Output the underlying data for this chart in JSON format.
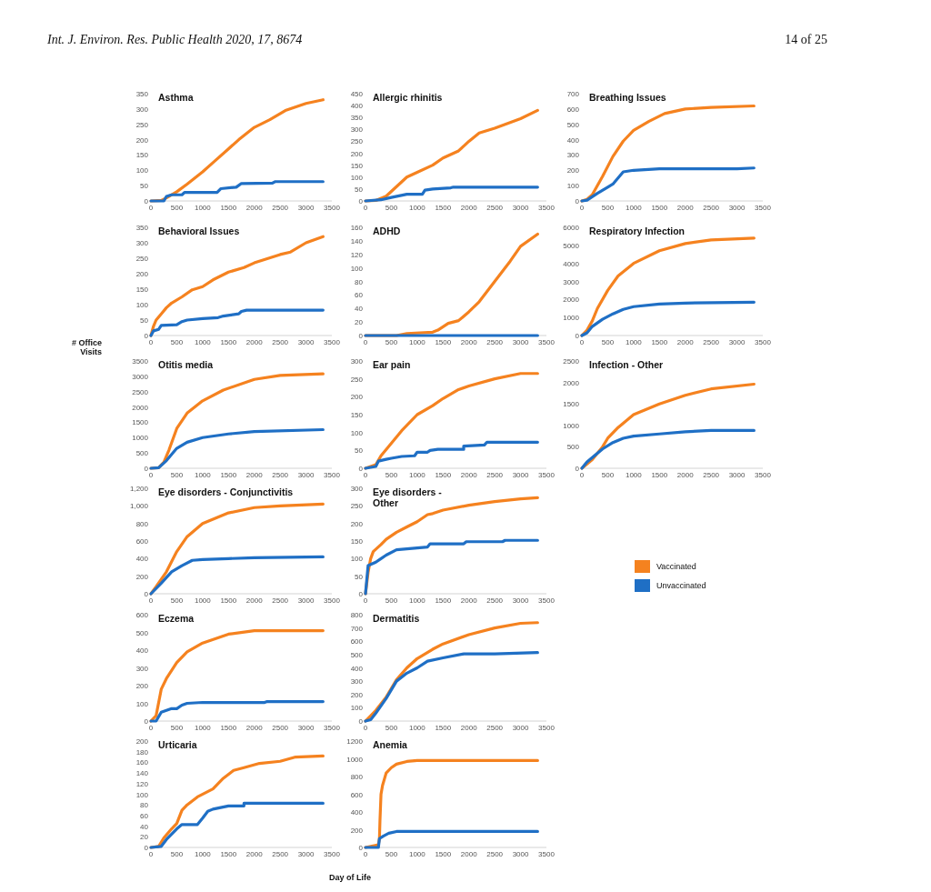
{
  "chart_data": [
    {
      "type": "line",
      "title": "Asthma",
      "annotations": [
        "Int. J. Environ. Res. Public Health 2020, 17, 8674",
        "14 of 25"
      ],
      "xlim": [
        0,
        3500
      ],
      "xticks": [
        0,
        500,
        1000,
        1500,
        2000,
        2500,
        3000,
        3500
      ],
      "ylim": [
        0,
        350
      ],
      "yticks": [
        0,
        50,
        100,
        150,
        200,
        250,
        300,
        350
      ],
      "series": [
        {
          "color": "#f5821f",
          "x": [
            0,
            200,
            300,
            500,
            700,
            1000,
            1200,
            1500,
            1700,
            2000,
            2300,
            2600,
            3000,
            3330
          ],
          "values": [
            0,
            2,
            10,
            30,
            55,
            95,
            125,
            170,
            200,
            240,
            265,
            295,
            318,
            330
          ]
        },
        {
          "color": "#1f6fc5",
          "x": [
            0,
            250,
            300,
            400,
            600,
            650,
            1280,
            1350,
            1650,
            1750,
            2350,
            2400,
            3330
          ],
          "values": [
            0,
            0,
            15,
            20,
            20,
            28,
            28,
            40,
            45,
            57,
            58,
            63,
            63
          ]
        }
      ]
    },
    {
      "type": "line",
      "title": "Allergic rhinitis",
      "xlim": [
        0,
        3500
      ],
      "xticks": [
        0,
        500,
        1000,
        1500,
        2000,
        2500,
        3000,
        3500
      ],
      "ylim": [
        0,
        450
      ],
      "yticks": [
        0,
        50,
        100,
        150,
        200,
        250,
        300,
        350,
        400,
        450
      ],
      "series": [
        {
          "color": "#f5821f",
          "x": [
            0,
            200,
            400,
            600,
            800,
            1000,
            1300,
            1500,
            1800,
            2000,
            2200,
            2500,
            3000,
            3330
          ],
          "values": [
            0,
            2,
            20,
            60,
            100,
            120,
            150,
            180,
            210,
            250,
            285,
            305,
            345,
            380
          ]
        },
        {
          "color": "#1f6fc5",
          "x": [
            0,
            300,
            500,
            800,
            1100,
            1150,
            1300,
            1650,
            1700,
            3330
          ],
          "values": [
            0,
            5,
            15,
            28,
            28,
            45,
            50,
            55,
            58,
            58
          ]
        }
      ]
    },
    {
      "type": "line",
      "title": "Breathing  Issues",
      "xlim": [
        0,
        3500
      ],
      "xticks": [
        0,
        500,
        1000,
        1500,
        2000,
        2500,
        3000,
        3500
      ],
      "ylim": [
        0,
        700
      ],
      "yticks": [
        0,
        100,
        200,
        300,
        400,
        500,
        600,
        700
      ],
      "series": [
        {
          "color": "#f5821f",
          "x": [
            0,
            100,
            200,
            400,
            600,
            800,
            1000,
            1300,
            1600,
            2000,
            2500,
            3330
          ],
          "values": [
            0,
            10,
            40,
            160,
            290,
            390,
            460,
            520,
            570,
            600,
            610,
            620
          ]
        },
        {
          "color": "#1f6fc5",
          "x": [
            0,
            100,
            300,
            500,
            600,
            700,
            800,
            1000,
            1500,
            3000,
            3330
          ],
          "values": [
            0,
            5,
            50,
            90,
            110,
            150,
            190,
            200,
            210,
            210,
            215
          ]
        }
      ]
    },
    {
      "type": "line",
      "title": "Behavioral  Issues",
      "ylabel": "# Office Visits",
      "xlim": [
        0,
        3500
      ],
      "xticks": [
        0,
        500,
        1000,
        1500,
        2000,
        2500,
        3000,
        3500
      ],
      "ylim": [
        0,
        350
      ],
      "yticks": [
        0,
        50,
        100,
        150,
        200,
        250,
        300,
        350
      ],
      "series": [
        {
          "color": "#f5821f",
          "x": [
            0,
            50,
            100,
            200,
            300,
            400,
            600,
            800,
            1000,
            1200,
            1500,
            1800,
            2000,
            2500,
            2700,
            3000,
            3330
          ],
          "values": [
            0,
            30,
            50,
            70,
            90,
            105,
            125,
            148,
            158,
            180,
            205,
            220,
            235,
            262,
            270,
            300,
            320
          ]
        },
        {
          "color": "#1f6fc5",
          "x": [
            0,
            50,
            150,
            200,
            500,
            600,
            700,
            1000,
            1300,
            1400,
            1700,
            1750,
            1850,
            3330
          ],
          "values": [
            0,
            15,
            20,
            33,
            35,
            45,
            50,
            55,
            58,
            63,
            70,
            78,
            82,
            82
          ]
        }
      ]
    },
    {
      "type": "line",
      "title": "ADHD",
      "xlim": [
        0,
        3500
      ],
      "xticks": [
        0,
        500,
        1000,
        1500,
        2000,
        2500,
        3000,
        3500
      ],
      "ylim": [
        0,
        160
      ],
      "yticks": [
        0,
        20,
        40,
        60,
        80,
        100,
        120,
        140,
        160
      ],
      "series": [
        {
          "color": "#f5821f",
          "x": [
            0,
            600,
            800,
            1300,
            1400,
            1600,
            1800,
            2000,
            2200,
            2500,
            2800,
            3000,
            3330
          ],
          "values": [
            0,
            0,
            3,
            5,
            8,
            18,
            22,
            35,
            50,
            80,
            110,
            132,
            150
          ]
        },
        {
          "color": "#1f6fc5",
          "x": [
            0,
            800,
            1400,
            3330
          ],
          "values": [
            0,
            0,
            0,
            0
          ]
        }
      ]
    },
    {
      "type": "line",
      "title": "Respiratory Infection",
      "xlim": [
        0,
        3500
      ],
      "xticks": [
        0,
        500,
        1000,
        1500,
        2000,
        2500,
        3000,
        3500
      ],
      "ylim": [
        0,
        6000
      ],
      "yticks": [
        0,
        1000,
        2000,
        3000,
        4000,
        5000,
        6000
      ],
      "series": [
        {
          "color": "#f5821f",
          "x": [
            0,
            100,
            200,
            300,
            500,
            700,
            1000,
            1500,
            2000,
            2500,
            3330
          ],
          "values": [
            0,
            300,
            800,
            1500,
            2500,
            3300,
            4000,
            4700,
            5100,
            5300,
            5400
          ]
        },
        {
          "color": "#1f6fc5",
          "x": [
            0,
            100,
            200,
            400,
            600,
            800,
            1000,
            1500,
            2000,
            3330
          ],
          "values": [
            0,
            150,
            500,
            900,
            1200,
            1450,
            1600,
            1750,
            1800,
            1850
          ]
        }
      ]
    },
    {
      "type": "line",
      "title": "Otitis media",
      "xlim": [
        0,
        3500
      ],
      "xticks": [
        0,
        500,
        1000,
        1500,
        2000,
        2500,
        3000,
        3500
      ],
      "ylim": [
        0,
        3500
      ],
      "yticks": [
        0,
        500,
        1000,
        1500,
        2000,
        2500,
        3000,
        3500
      ],
      "series": [
        {
          "color": "#f5821f",
          "x": [
            0,
            150,
            250,
            350,
            500,
            700,
            1000,
            1400,
            2000,
            2500,
            3330
          ],
          "values": [
            0,
            20,
            200,
            600,
            1300,
            1800,
            2200,
            2550,
            2900,
            3030,
            3080
          ]
        },
        {
          "color": "#1f6fc5",
          "x": [
            0,
            150,
            300,
            500,
            700,
            1000,
            1500,
            2000,
            3330
          ],
          "values": [
            0,
            20,
            250,
            650,
            850,
            1000,
            1120,
            1200,
            1260
          ]
        }
      ]
    },
    {
      "type": "line",
      "title": "Ear pain",
      "xlim": [
        0,
        3500
      ],
      "xticks": [
        0,
        500,
        1000,
        1500,
        2000,
        2500,
        3000,
        3500
      ],
      "ylim": [
        0,
        300
      ],
      "yticks": [
        0,
        50,
        100,
        150,
        200,
        250,
        300
      ],
      "series": [
        {
          "color": "#f5821f",
          "x": [
            0,
            200,
            300,
            500,
            700,
            1000,
            1300,
            1500,
            1800,
            2000,
            2500,
            3000,
            3330
          ],
          "values": [
            0,
            10,
            35,
            70,
            105,
            150,
            175,
            195,
            220,
            230,
            250,
            265,
            265
          ]
        },
        {
          "color": "#1f6fc5",
          "x": [
            0,
            200,
            250,
            400,
            500,
            700,
            950,
            1000,
            1200,
            1250,
            1400,
            1900,
            1900,
            2300,
            2350,
            3330
          ],
          "values": [
            0,
            5,
            20,
            25,
            28,
            33,
            35,
            45,
            45,
            50,
            53,
            53,
            62,
            65,
            73,
            73
          ]
        }
      ]
    },
    {
      "type": "line",
      "title": "Infection  - Other",
      "xlim": [
        0,
        3500
      ],
      "xticks": [
        0,
        500,
        1000,
        1500,
        2000,
        2500,
        3000,
        3500
      ],
      "ylim": [
        0,
        2500
      ],
      "yticks": [
        0,
        500,
        1000,
        1500,
        2000,
        2500
      ],
      "series": [
        {
          "color": "#f5821f",
          "x": [
            0,
            200,
            400,
            500,
            700,
            1000,
            1500,
            2000,
            2500,
            3330
          ],
          "values": [
            0,
            200,
            500,
            700,
            950,
            1250,
            1500,
            1700,
            1850,
            1960
          ]
        },
        {
          "color": "#1f6fc5",
          "x": [
            0,
            100,
            200,
            400,
            600,
            800,
            1000,
            1500,
            2000,
            2500,
            3330
          ],
          "values": [
            0,
            150,
            250,
            450,
            600,
            700,
            750,
            800,
            850,
            880,
            880
          ]
        }
      ]
    },
    {
      "type": "line",
      "title": "Eye disorders - Conjunctivitis",
      "xlim": [
        0,
        3500
      ],
      "xticks": [
        0,
        500,
        1000,
        1500,
        2000,
        2500,
        3000,
        3500
      ],
      "ylim": [
        0,
        1200
      ],
      "yticks": [
        0,
        200,
        400,
        600,
        800,
        {
          "value": 1000,
          "label": "1,000"
        },
        {
          "value": 1200,
          "label": "1,200"
        }
      ],
      "series": [
        {
          "color": "#f5821f",
          "x": [
            0,
            100,
            300,
            500,
            700,
            1000,
            1500,
            2000,
            2500,
            3330
          ],
          "values": [
            0,
            80,
            250,
            480,
            650,
            800,
            920,
            980,
            1000,
            1020
          ]
        },
        {
          "color": "#1f6fc5",
          "x": [
            0,
            200,
            400,
            600,
            800,
            1000,
            1500,
            2000,
            3330
          ],
          "values": [
            0,
            120,
            250,
            320,
            380,
            390,
            400,
            410,
            420
          ]
        }
      ]
    },
    {
      "type": "line",
      "title": "Eye disorders -\nOther",
      "legend": "right",
      "xlim": [
        0,
        3500
      ],
      "xticks": [
        0,
        500,
        1000,
        1500,
        2000,
        2500,
        3000,
        3500
      ],
      "ylim": [
        0,
        300
      ],
      "yticks": [
        0,
        50,
        100,
        150,
        200,
        250,
        300
      ],
      "series": [
        {
          "name": "Vaccinated",
          "color": "#f5821f",
          "x": [
            0,
            50,
            100,
            150,
            300,
            400,
            600,
            800,
            1000,
            1200,
            1300,
            1500,
            2000,
            2500,
            3000,
            3330
          ],
          "values": [
            0,
            60,
            100,
            120,
            140,
            155,
            175,
            190,
            205,
            225,
            228,
            238,
            252,
            262,
            270,
            273
          ]
        },
        {
          "name": "Unvaccinated",
          "color": "#1f6fc5",
          "x": [
            0,
            50,
            200,
            300,
            400,
            600,
            1200,
            1250,
            1900,
            1950,
            2650,
            2700,
            3330
          ],
          "values": [
            0,
            80,
            90,
            100,
            110,
            125,
            133,
            142,
            142,
            148,
            148,
            152,
            152
          ]
        }
      ]
    },
    {
      "type": "line",
      "title": "Eczema",
      "xlim": [
        0,
        3500
      ],
      "xticks": [
        0,
        500,
        1000,
        1500,
        2000,
        2500,
        3000,
        3500
      ],
      "ylim": [
        0,
        600
      ],
      "yticks": [
        0,
        100,
        200,
        300,
        400,
        500,
        600
      ],
      "series": [
        {
          "color": "#f5821f",
          "x": [
            0,
            100,
            200,
            300,
            500,
            700,
            1000,
            1500,
            2000,
            3330
          ],
          "values": [
            0,
            30,
            180,
            240,
            330,
            390,
            440,
            490,
            510,
            510
          ]
        },
        {
          "color": "#1f6fc5",
          "x": [
            0,
            100,
            200,
            400,
            500,
            600,
            700,
            1000,
            2200,
            2250,
            3330
          ],
          "values": [
            0,
            0,
            50,
            70,
            70,
            90,
            100,
            105,
            105,
            110,
            110
          ]
        }
      ]
    },
    {
      "type": "line",
      "title": "Dermatitis",
      "xlim": [
        0,
        3500
      ],
      "xticks": [
        0,
        500,
        1000,
        1500,
        2000,
        2500,
        3000,
        3500
      ],
      "ylim": [
        0,
        800
      ],
      "yticks": [
        0,
        100,
        200,
        300,
        400,
        500,
        600,
        700,
        800
      ],
      "series": [
        {
          "color": "#f5821f",
          "x": [
            0,
            200,
            400,
            600,
            800,
            1000,
            1300,
            1500,
            2000,
            2500,
            3000,
            3330
          ],
          "values": [
            0,
            80,
            180,
            310,
            400,
            470,
            540,
            580,
            650,
            700,
            735,
            740
          ]
        },
        {
          "color": "#1f6fc5",
          "x": [
            0,
            100,
            200,
            400,
            600,
            800,
            1000,
            1200,
            1500,
            1900,
            2500,
            3330
          ],
          "values": [
            0,
            10,
            60,
            170,
            300,
            360,
            400,
            450,
            475,
            505,
            505,
            515
          ]
        }
      ]
    },
    {
      "type": "line",
      "title": "Urticaria",
      "xlabel": "Day of Life",
      "xlim": [
        0,
        3500
      ],
      "xticks": [
        0,
        500,
        1000,
        1500,
        2000,
        2500,
        3000,
        3500
      ],
      "ylim": [
        0,
        200
      ],
      "yticks": [
        0,
        20,
        40,
        60,
        80,
        100,
        120,
        140,
        160,
        180,
        200
      ],
      "series": [
        {
          "color": "#f5821f",
          "x": [
            0,
            150,
            250,
            400,
            500,
            600,
            700,
            900,
            1200,
            1400,
            1600,
            1800,
            2100,
            2500,
            2800,
            3330
          ],
          "values": [
            0,
            2,
            18,
            35,
            45,
            70,
            80,
            95,
            110,
            130,
            145,
            150,
            158,
            162,
            170,
            172
          ]
        },
        {
          "color": "#1f6fc5",
          "x": [
            0,
            200,
            300,
            400,
            500,
            600,
            900,
            1000,
            1100,
            1200,
            1500,
            1800,
            1800,
            3330
          ],
          "values": [
            0,
            2,
            15,
            25,
            35,
            43,
            43,
            55,
            68,
            72,
            78,
            78,
            83,
            83
          ]
        }
      ]
    },
    {
      "type": "line",
      "title": "Anemia",
      "xlim": [
        0,
        3500
      ],
      "xticks": [
        0,
        500,
        1000,
        1500,
        2000,
        2500,
        3000,
        3500
      ],
      "ylim": [
        0,
        1200
      ],
      "yticks": [
        0,
        200,
        400,
        600,
        800,
        1000,
        1200
      ],
      "series": [
        {
          "color": "#f5821f",
          "x": [
            0,
            250,
            270,
            280,
            300,
            330,
            400,
            500,
            600,
            800,
            1000,
            3330
          ],
          "values": [
            0,
            30,
            100,
            300,
            600,
            700,
            840,
            900,
            940,
            970,
            980,
            980
          ]
        },
        {
          "color": "#1f6fc5",
          "x": [
            0,
            250,
            270,
            350,
            450,
            600,
            3330
          ],
          "values": [
            0,
            0,
            100,
            130,
            160,
            180,
            180
          ]
        }
      ]
    }
  ]
}
